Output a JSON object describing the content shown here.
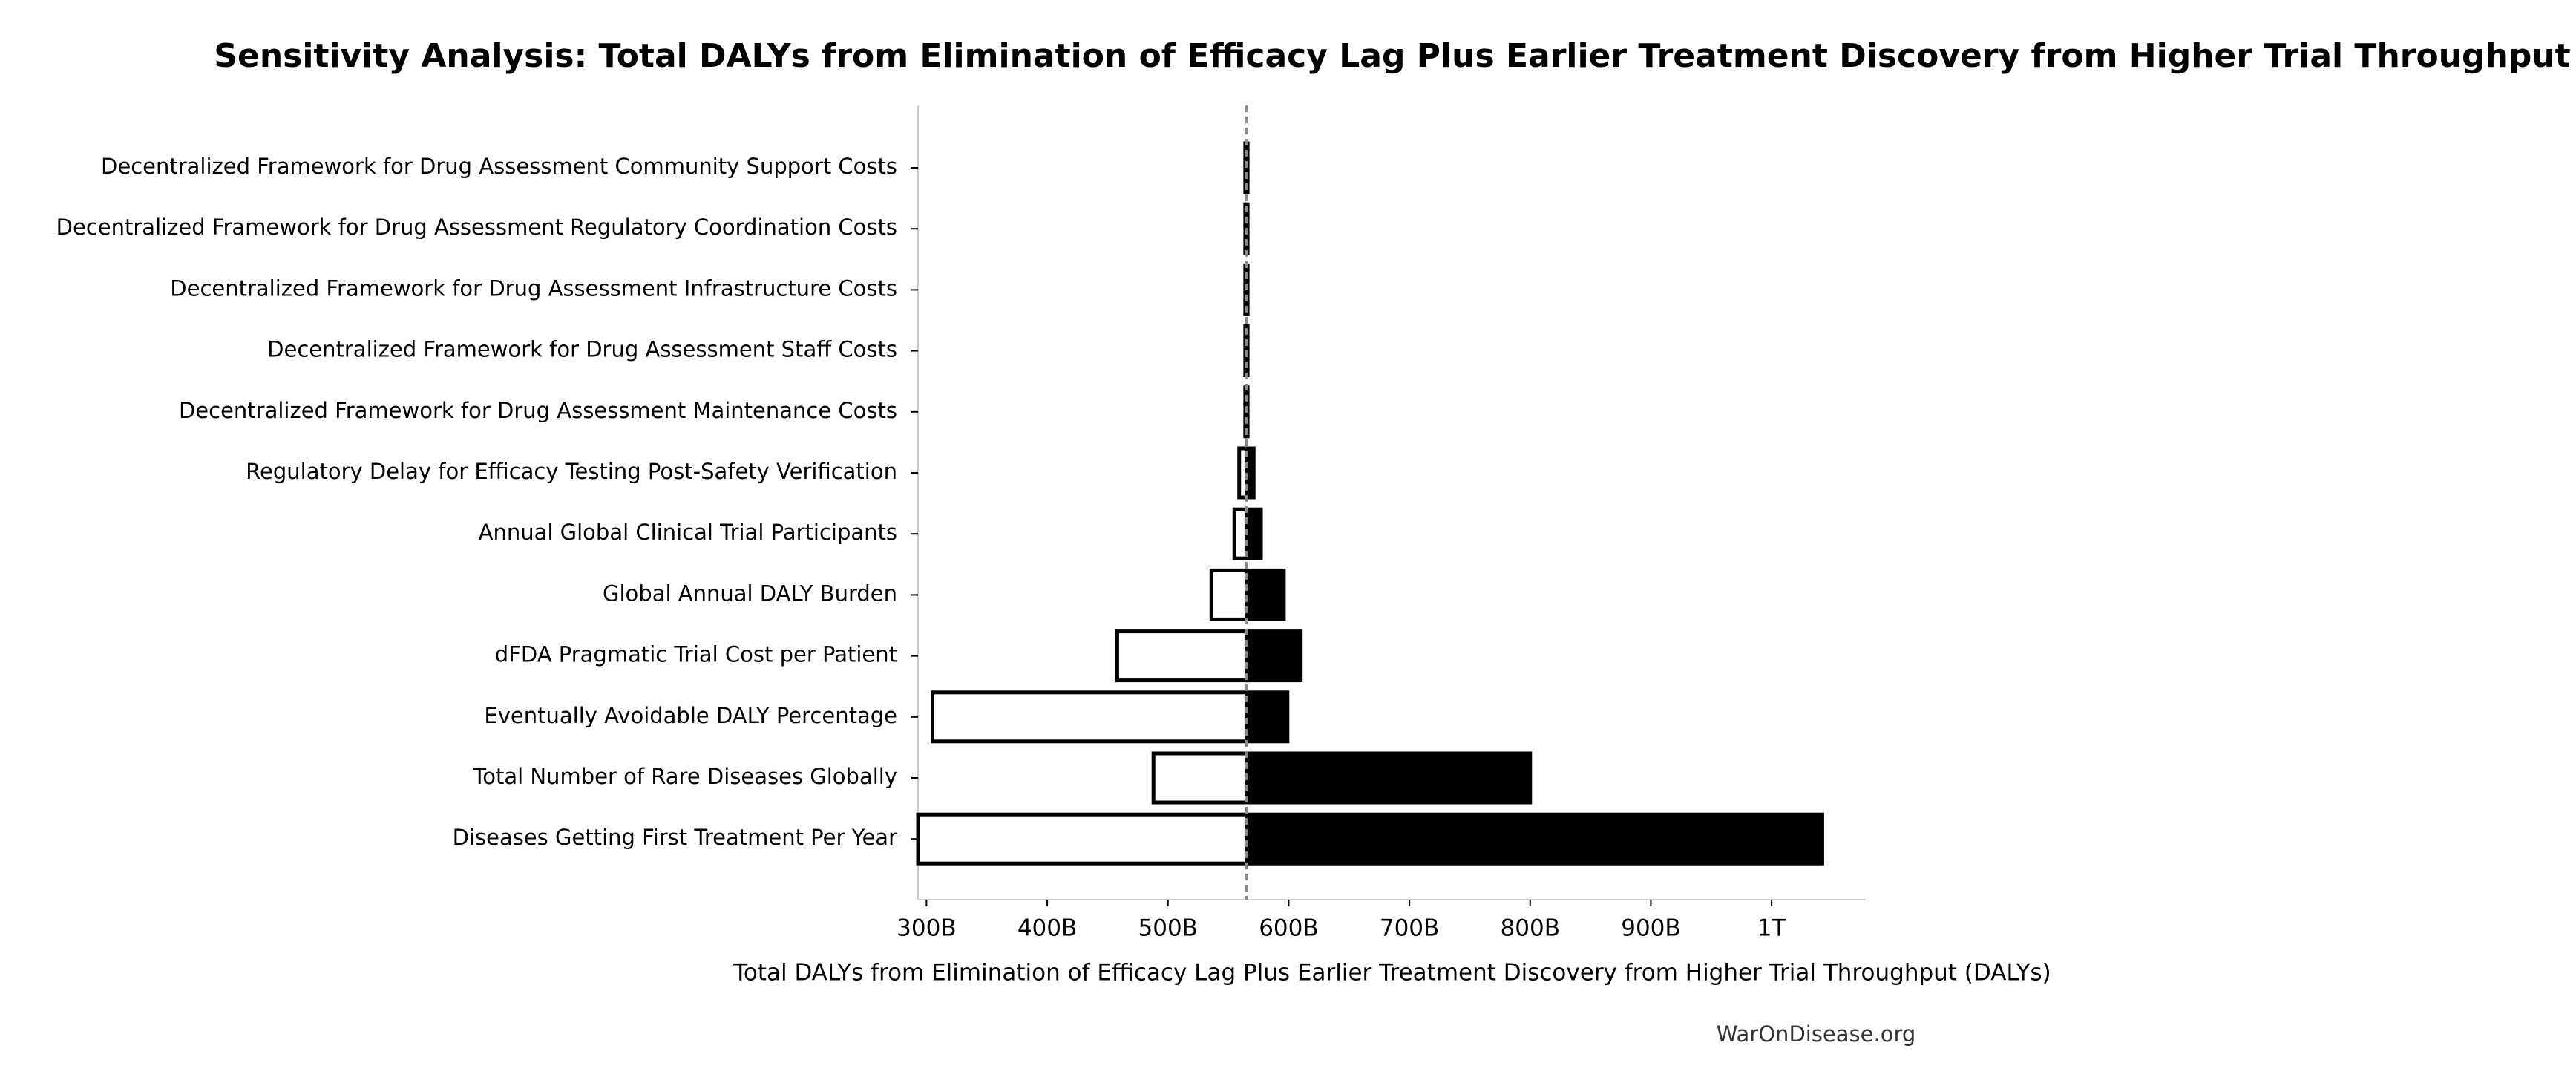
{
  "chart_data": {
    "type": "tornado",
    "title": "Sensitivity Analysis: Total DALYs from Elimination of Efficacy Lag Plus Earlier Treatment Discovery from Higher Trial Throughput",
    "x_label": "Total DALYs from Elimination of Efficacy Lag Plus Earlier Treatment Discovery from Higher Trial Throughput (DALYs)",
    "source": "WarOnDisease.org",
    "categories": [
      "Decentralized Framework for Drug Assessment Community Support Costs",
      "Decentralized Framework for Drug Assessment Regulatory Coordination Costs",
      "Decentralized Framework for Drug Assessment Infrastructure Costs",
      "Decentralized Framework for Drug Assessment Staff Costs",
      "Decentralized Framework for Drug Assessment Maintenance Costs",
      "Regulatory Delay for Efficacy Testing Post-Safety Verification",
      "Annual Global Clinical Trial Participants",
      "Global Annual DALY Burden",
      "dFDA Pragmatic Trial Cost per Patient",
      "Eventually Avoidable DALY Percentage",
      "Total Number of Rare Diseases Globally",
      "Diseases Getting First Treatment Per Year"
    ],
    "baseline": 565000000000,
    "low": [
      564000000000,
      564000000000,
      564000000000,
      564000000000,
      564000000000,
      559000000000,
      555000000000,
      536000000000,
      458000000000,
      305000000000,
      488000000000,
      293000000000
    ],
    "high": [
      566000000000,
      566000000000,
      566000000000,
      566000000000,
      566000000000,
      571000000000,
      577000000000,
      596000000000,
      610000000000,
      599000000000,
      800000000000,
      1042000000000
    ],
    "low_color": "#ffffff",
    "high_color": "#000000",
    "xlim": [
      293000000000,
      1078000000000
    ],
    "xticks": [
      {
        "value": 300000000000,
        "label": "300B"
      },
      {
        "value": 400000000000,
        "label": "400B"
      },
      {
        "value": 500000000000,
        "label": "500B"
      },
      {
        "value": 600000000000,
        "label": "600B"
      },
      {
        "value": 700000000000,
        "label": "700B"
      },
      {
        "value": 800000000000,
        "label": "800B"
      },
      {
        "value": 900000000000,
        "label": "900B"
      },
      {
        "value": 1000000000000,
        "label": "1T"
      }
    ]
  }
}
